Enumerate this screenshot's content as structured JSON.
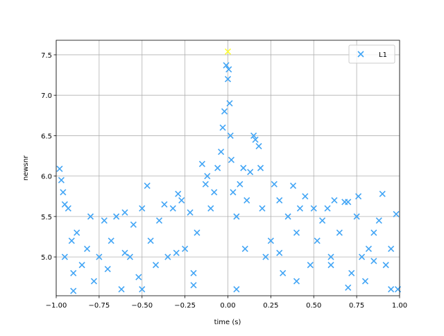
{
  "chart_data": {
    "type": "scatter",
    "xlabel": "time (s)",
    "ylabel": "newsnr",
    "xlim": [
      -1,
      1
    ],
    "ylim": [
      4.52,
      7.68
    ],
    "xticks": [
      {
        "value": -1,
        "label": "−1.00"
      },
      {
        "value": -0.75,
        "label": "−0.75"
      },
      {
        "value": -0.5,
        "label": "−0.50"
      },
      {
        "value": -0.25,
        "label": "−0.25"
      },
      {
        "value": 0,
        "label": "0.00"
      },
      {
        "value": 0.25,
        "label": "0.25"
      },
      {
        "value": 0.5,
        "label": "0.50"
      },
      {
        "value": 0.75,
        "label": "0.75"
      },
      {
        "value": 1,
        "label": "1.00"
      }
    ],
    "yticks": [
      {
        "value": 5,
        "label": "5.0"
      },
      5.5,
      {
        "value": 6,
        "label": "6.0"
      },
      6.5,
      {
        "value": 7,
        "label": "7.0"
      },
      7.5
    ],
    "grid": true,
    "legend": "upper right",
    "series": [
      {
        "name": "L1",
        "color": "#42a5f5",
        "x": [
          -0.98,
          -0.97,
          -0.96,
          -0.95,
          -0.93,
          -0.91,
          -0.9,
          -0.88,
          -0.85,
          -0.82,
          -0.8,
          -0.78,
          -0.75,
          -0.72,
          -0.7,
          -0.68,
          -0.65,
          -0.62,
          -0.6,
          -0.57,
          -0.55,
          -0.52,
          -0.5,
          -0.47,
          -0.45,
          -0.42,
          -0.4,
          -0.37,
          -0.35,
          -0.32,
          -0.29,
          -0.27,
          -0.25,
          -0.22,
          -0.2,
          -0.18,
          -0.15,
          -0.13,
          -0.12,
          -0.1,
          -0.08,
          -0.06,
          -0.04,
          -0.03,
          -0.02,
          -0.01,
          0,
          0.005,
          0.01,
          0.015,
          0.02,
          0.03,
          0.05,
          0.07,
          0.09,
          0.11,
          0.13,
          0.15,
          0.16,
          0.18,
          0.19,
          0.2,
          0.22,
          0.25,
          0.27,
          0.3,
          0.32,
          0.35,
          0.38,
          0.4,
          0.42,
          0.45,
          0.48,
          0.5,
          0.52,
          0.55,
          0.58,
          0.6,
          0.62,
          0.65,
          0.68,
          0.7,
          0.72,
          0.75,
          0.76,
          0.78,
          0.8,
          0.82,
          0.85,
          0.88,
          0.9,
          0.92,
          0.95,
          0.98,
          0.99,
          -0.9,
          -0.5,
          -0.2,
          0.05,
          0.4,
          0.7,
          0.95,
          -0.95,
          -0.6,
          -0.3,
          0.1,
          0.3,
          0.6,
          0.85
        ],
        "values": [
          6.09,
          5.95,
          5.8,
          5.65,
          5.6,
          5.2,
          4.8,
          5.3,
          4.9,
          5.1,
          5.5,
          4.7,
          5.0,
          5.45,
          4.85,
          5.2,
          5.5,
          4.6,
          5.55,
          5.0,
          5.4,
          4.75,
          5.6,
          5.88,
          5.2,
          4.9,
          5.45,
          5.65,
          5.0,
          5.6,
          5.78,
          5.7,
          5.1,
          5.55,
          4.8,
          5.3,
          6.15,
          5.9,
          6.0,
          5.6,
          5.8,
          6.1,
          6.3,
          6.6,
          6.8,
          7.37,
          7.2,
          7.32,
          6.9,
          6.5,
          6.2,
          5.8,
          5.5,
          5.9,
          6.1,
          5.7,
          6.05,
          6.5,
          6.45,
          6.37,
          6.1,
          5.6,
          5.0,
          5.2,
          5.9,
          5.7,
          4.8,
          5.5,
          5.88,
          5.3,
          5.6,
          5.75,
          4.9,
          5.6,
          5.2,
          5.45,
          5.6,
          4.9,
          5.7,
          5.3,
          5.68,
          5.68,
          4.8,
          5.5,
          5.75,
          5.0,
          4.7,
          5.1,
          5.3,
          5.45,
          5.78,
          4.9,
          5.1,
          5.53,
          4.6,
          4.58,
          4.6,
          4.65,
          4.6,
          4.7,
          4.62,
          4.6,
          5.0,
          5.05,
          5.05,
          5.1,
          5.05,
          5.0,
          4.95
        ]
      }
    ],
    "highlight": {
      "x": 0,
      "y": 7.54,
      "color": "#ffff33"
    }
  }
}
